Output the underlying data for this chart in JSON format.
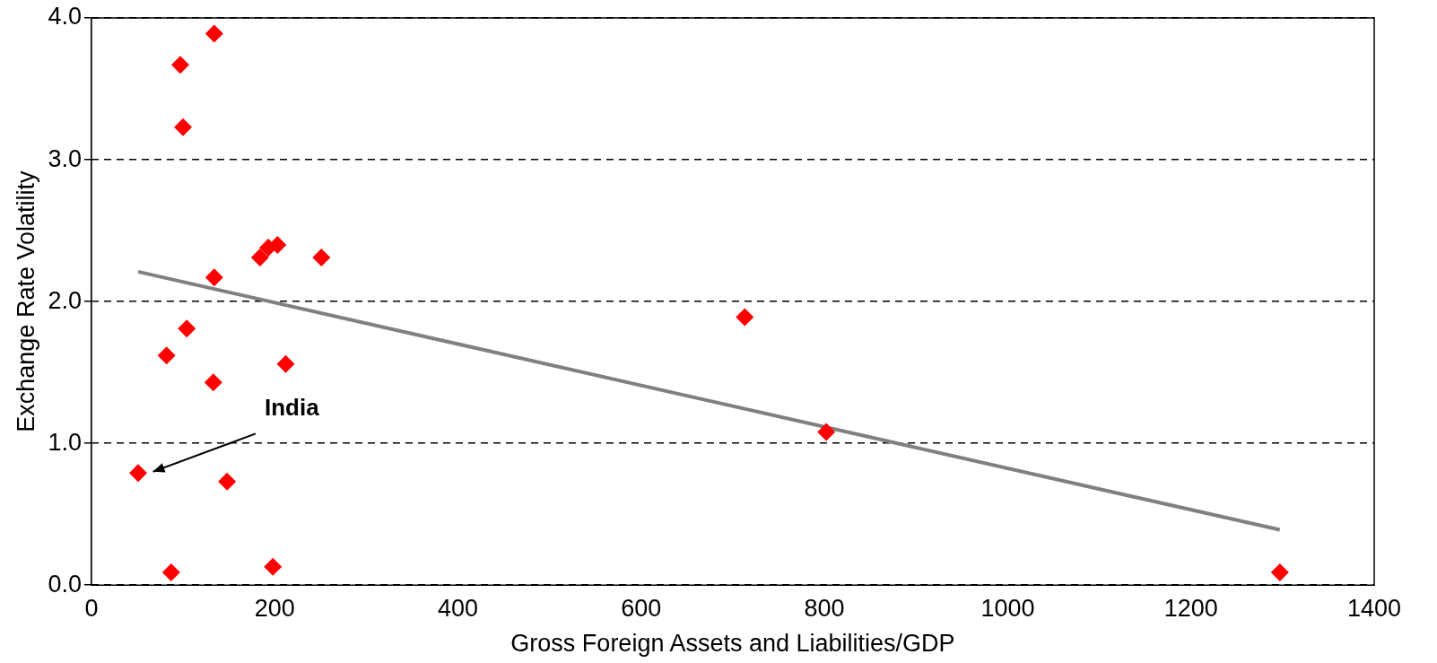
{
  "chart_data": {
    "type": "scatter",
    "xlabel": "Gross Foreign Assets and Liabilities/GDP",
    "ylabel": "Exchange Rate Volatility",
    "xlim": [
      0,
      1400
    ],
    "xticks": [
      0,
      200,
      400,
      600,
      800,
      1000,
      1200,
      1400
    ],
    "ylim": [
      0,
      4
    ],
    "yticks": [
      {
        "value": 0,
        "label": "0.0"
      },
      {
        "value": 1,
        "label": "1.0"
      },
      {
        "value": 2,
        "label": "2.0"
      },
      {
        "value": 3,
        "label": "3.0"
      },
      {
        "value": 4,
        "label": "4.0"
      }
    ],
    "grid": "y",
    "legend": false,
    "series": [
      {
        "marker": "diamond",
        "color": "#ff0000",
        "x": [
          51,
          87,
          82,
          97,
          100,
          104,
          134,
          134,
          133,
          148,
          184,
          193,
          203,
          198,
          212,
          251,
          713,
          802,
          1297
        ],
        "values": [
          0.79,
          0.09,
          1.62,
          3.67,
          3.23,
          1.81,
          3.89,
          2.17,
          1.43,
          0.73,
          2.31,
          2.38,
          2.4,
          0.13,
          1.56,
          2.31,
          1.89,
          1.08,
          0.09
        ]
      },
      {
        "type": "line",
        "marker": "none",
        "color": "#808080",
        "x": [
          51,
          1297
        ],
        "values": [
          2.21,
          0.39
        ]
      }
    ],
    "annotations": [
      "India"
    ]
  }
}
